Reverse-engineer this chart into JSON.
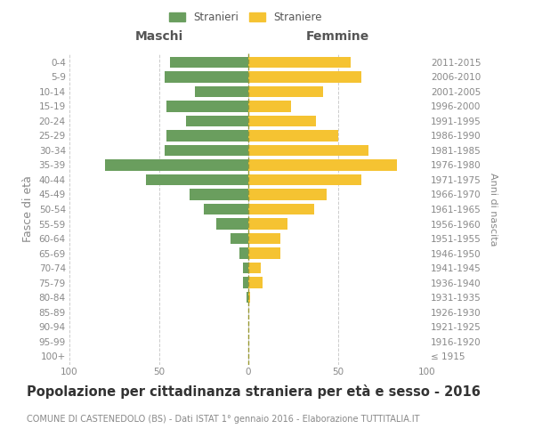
{
  "age_groups": [
    "100+",
    "95-99",
    "90-94",
    "85-89",
    "80-84",
    "75-79",
    "70-74",
    "65-69",
    "60-64",
    "55-59",
    "50-54",
    "45-49",
    "40-44",
    "35-39",
    "30-34",
    "25-29",
    "20-24",
    "15-19",
    "10-14",
    "5-9",
    "0-4"
  ],
  "birth_years": [
    "≤ 1915",
    "1916-1920",
    "1921-1925",
    "1926-1930",
    "1931-1935",
    "1936-1940",
    "1941-1945",
    "1946-1950",
    "1951-1955",
    "1956-1960",
    "1961-1965",
    "1966-1970",
    "1971-1975",
    "1976-1980",
    "1981-1985",
    "1986-1990",
    "1991-1995",
    "1996-2000",
    "2001-2005",
    "2006-2010",
    "2011-2015"
  ],
  "maschi": [
    0,
    0,
    0,
    0,
    1,
    3,
    3,
    5,
    10,
    18,
    25,
    33,
    57,
    80,
    47,
    46,
    35,
    46,
    30,
    47,
    44
  ],
  "femmine": [
    0,
    0,
    0,
    0,
    1,
    8,
    7,
    18,
    18,
    22,
    37,
    44,
    63,
    83,
    67,
    50,
    38,
    24,
    42,
    63,
    57
  ],
  "male_color": "#6a9e5e",
  "female_color": "#f5c332",
  "grid_color": "#cccccc",
  "bar_height": 0.75,
  "xlim": 100,
  "title": "Popolazione per cittadinanza straniera per età e sesso - 2016",
  "subtitle": "COMUNE DI CASTENEDOLO (BS) - Dati ISTAT 1° gennaio 2016 - Elaborazione TUTTITALIA.IT",
  "xlabel_left": "Maschi",
  "xlabel_right": "Femmine",
  "ylabel_left": "Fasce di età",
  "ylabel_right": "Anni di nascita",
  "legend_male": "Stranieri",
  "legend_female": "Straniere",
  "bg_color": "#ffffff",
  "title_fontsize": 10.5,
  "subtitle_fontsize": 7.0,
  "tick_fontsize": 7.5,
  "label_fontsize": 9
}
